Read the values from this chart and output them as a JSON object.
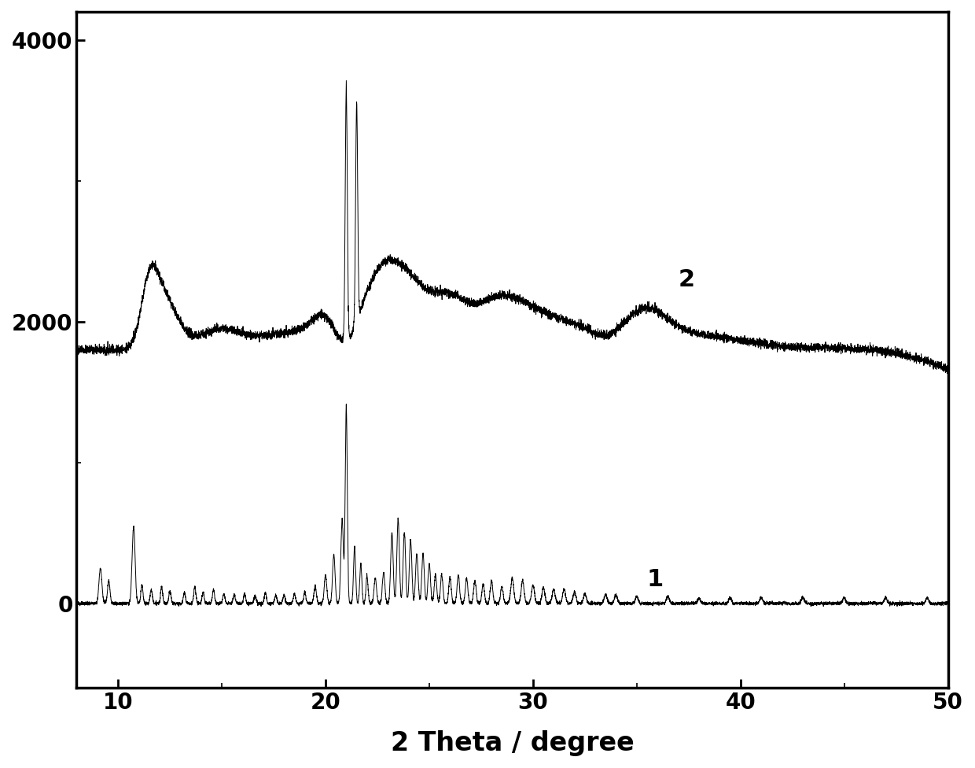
{
  "title": "",
  "xlabel": "2 Theta / degree",
  "ylabel": "",
  "xlim": [
    8,
    50
  ],
  "ylim": [
    -600,
    4200
  ],
  "yticks": [
    0,
    2000,
    4000
  ],
  "xticks": [
    10,
    20,
    30,
    40,
    50
  ],
  "curve2_baseline": 1800,
  "label1": "1",
  "label2": "2",
  "line_color": "#000000",
  "bg_color": "#ffffff",
  "figsize": [
    12.4,
    9.76
  ],
  "dpi": 100
}
